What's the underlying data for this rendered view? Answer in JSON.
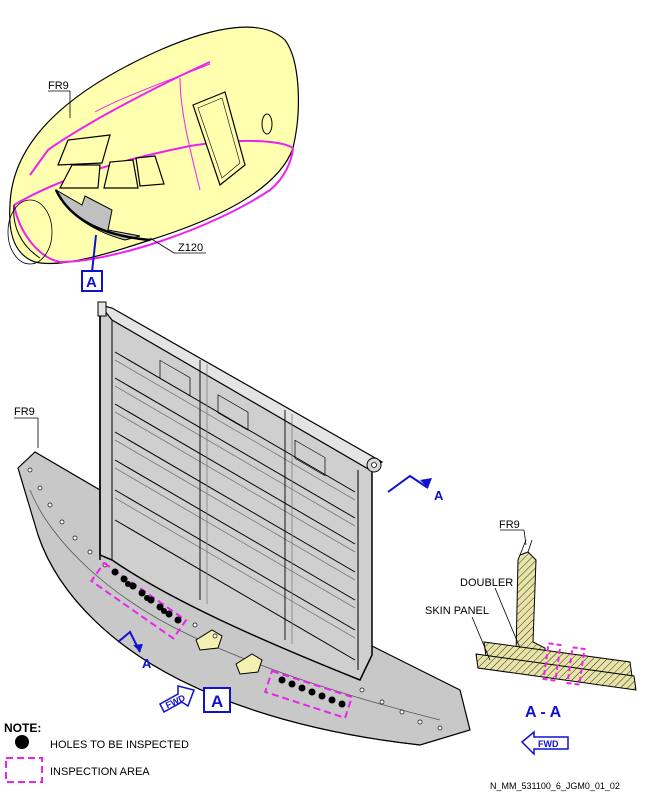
{
  "labels": {
    "fr9_top": "FR9",
    "z120": "Z120",
    "view_a_top": "A",
    "fr9_mid": "FR9",
    "section_arrow_right": "A",
    "section_arrow_left": "A",
    "view_a_bottom": "A",
    "fwd_left": "FWD",
    "fr9_section": "FR9",
    "doubler": "DOUBLER",
    "skin_panel": "SKIN PANEL",
    "section_title": "A - A",
    "fwd_right": "FWD"
  },
  "note": {
    "title": "NOTE:",
    "holes": "HOLES TO BE INSPECTED",
    "area": "INSPECTION AREA"
  },
  "reference": "N_MM_531100_6_JGM0_01_02",
  "colors": {
    "fuselage_fill": "#ffffb0",
    "inspection_magenta": "#ee22ee",
    "callout_blue": "#1010d0",
    "frame_grey": "#c8c8c8",
    "section_fill": "#e8e4a8"
  }
}
